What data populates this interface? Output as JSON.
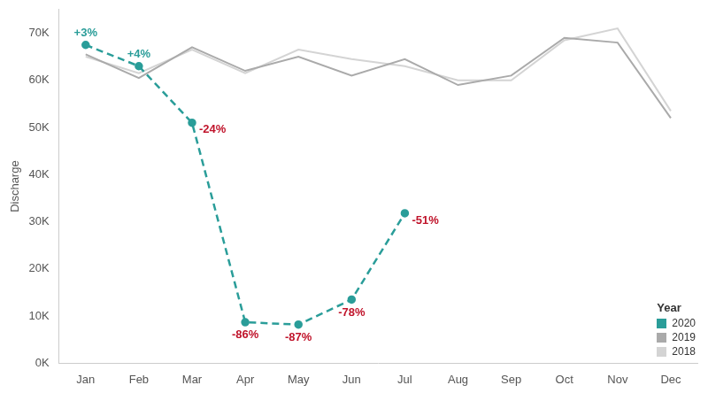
{
  "chart_data": {
    "type": "line",
    "y_label": "Discharge",
    "categories": [
      "Jan",
      "Feb",
      "Mar",
      "Apr",
      "May",
      "Jun",
      "Jul",
      "Aug",
      "Sep",
      "Oct",
      "Nov",
      "Dec"
    ],
    "ylim": [
      0,
      75000
    ],
    "yticks": [
      {
        "value": 0,
        "label": "0K"
      },
      {
        "value": 10000,
        "label": "10K"
      },
      {
        "value": 20000,
        "label": "20K"
      },
      {
        "value": 30000,
        "label": "30K"
      },
      {
        "value": 40000,
        "label": "40K"
      },
      {
        "value": 50000,
        "label": "50K"
      },
      {
        "value": 60000,
        "label": "60K"
      },
      {
        "value": 70000,
        "label": "70K"
      }
    ],
    "grid": false,
    "legend": "lower right",
    "legend_title": "Year",
    "series": [
      {
        "name": "2020",
        "color": "#2a9d99",
        "marker": "circle",
        "line_style": "dashed",
        "values": [
          67500,
          63000,
          51000,
          8700,
          8200,
          13500,
          31800,
          null,
          null,
          null,
          null,
          null
        ],
        "annotations": [
          "+3%",
          "+4%",
          "-24%",
          "-86%",
          "-87%",
          "-78%",
          "-51%",
          null,
          null,
          null,
          null,
          null
        ]
      },
      {
        "name": "2019",
        "color": "#aaaaaa",
        "line_style": "solid",
        "values": [
          65500,
          60500,
          67000,
          62000,
          65000,
          61000,
          64500,
          59000,
          61000,
          69000,
          68000,
          52000
        ]
      },
      {
        "name": "2018",
        "color": "#d4d4d4",
        "line_style": "solid",
        "values": [
          65000,
          61500,
          66500,
          61500,
          66500,
          64500,
          63000,
          60000,
          60000,
          68500,
          71000,
          53500
        ]
      }
    ]
  }
}
